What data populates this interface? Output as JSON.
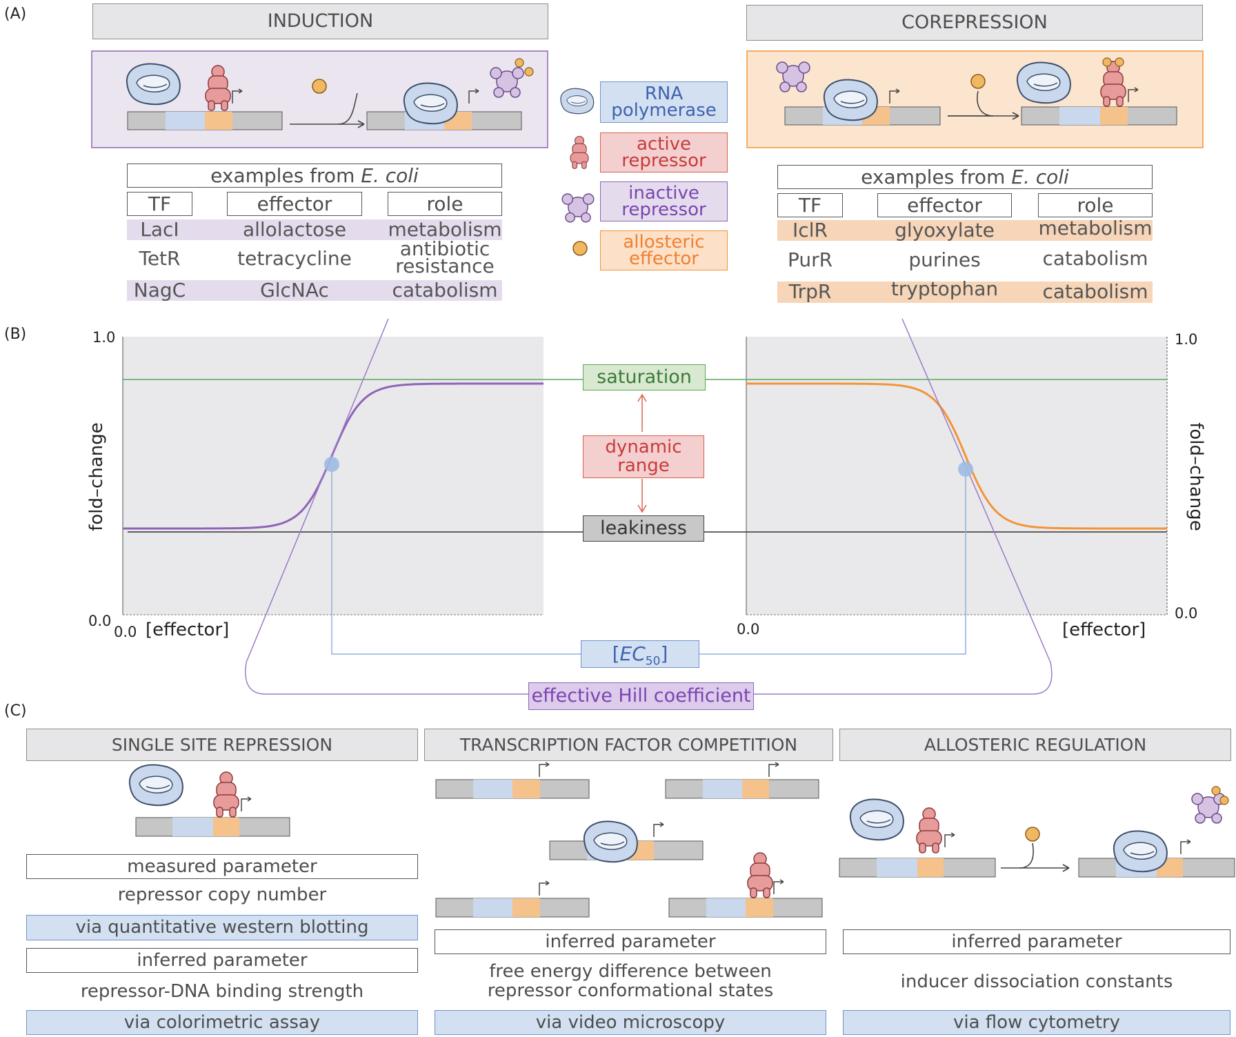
{
  "panel_labels": {
    "a": "(A)",
    "b": "(B)",
    "c": "(C)"
  },
  "induction": {
    "title": "INDUCTION",
    "table_caption": "examples from",
    "table_organism": "E. coli",
    "headers": [
      "TF",
      "effector",
      "role"
    ],
    "rows": [
      [
        "LacI",
        "allolactose",
        "metabolism"
      ],
      [
        "TetR",
        "tetracycline",
        "antibiotic resistance"
      ],
      [
        "NagC",
        "GlcNAc",
        "catabolism"
      ]
    ]
  },
  "corepression": {
    "title": "COREPRESSION",
    "table_caption": "examples from",
    "table_organism": "E. coli",
    "headers": [
      "TF",
      "effector",
      "role"
    ],
    "rows": [
      [
        "IclR",
        "glyoxylate",
        "metabolism"
      ],
      [
        "PurR",
        "purines",
        "catabolism"
      ],
      [
        "TrpR",
        "tryptophan",
        "catabolism"
      ]
    ]
  },
  "legend": {
    "rnap_1": "RNA",
    "rnap_2": "polymerase",
    "active_1": "active",
    "active_2": "repressor",
    "inactive_1": "inactive",
    "inactive_2": "repressor",
    "effector_1": "allosteric",
    "effector_2": "effector"
  },
  "plot": {
    "left_ytick_top": "1.0",
    "left_ytick_bottom": "0.0",
    "left_xtick": "0.0",
    "left_xlabel": "[effector]",
    "left_ylabel": "fold–change",
    "right_ytick_top": "1.0",
    "right_ytick_bottom": "0.0",
    "right_xtick": "0.0",
    "right_xlabel": "[effector]",
    "right_ylabel": "fold–change",
    "saturation": "saturation",
    "dynamic_range_1": "dynamic",
    "dynamic_range_2": "range",
    "leakiness": "leakiness",
    "ec50_bracket": "[",
    "ec50_italic": "EC",
    "ec50_sub": "50",
    "ec50_close": "]",
    "hill": "effective Hill coefficient",
    "colors": {
      "induction": "#8e63b8",
      "corepression": "#f39436",
      "saturation": "#5aa85a",
      "leakiness": "#333333",
      "ec50": "#8fb0dd"
    }
  },
  "panel_c": {
    "single_site": {
      "title": "SINGLE SITE REPRESSION",
      "measured_label": "measured parameter",
      "measured_value": "repressor copy number",
      "measured_method": "via quantitative western blotting",
      "inferred_label": "inferred parameter",
      "inferred_value": "repressor-DNA binding strength",
      "inferred_method": "via colorimetric assay"
    },
    "competition": {
      "title": "TRANSCRIPTION FACTOR COMPETITION",
      "inferred_label": "inferred parameter",
      "inferred_value_1": "free energy difference between",
      "inferred_value_2": "repressor conformational states",
      "inferred_method": "via  video microscopy"
    },
    "allosteric": {
      "title": "ALLOSTERIC REGULATION",
      "inferred_label": "inferred parameter",
      "inferred_value": "inducer dissociation constants",
      "inferred_method": "via flow cytometry"
    }
  }
}
